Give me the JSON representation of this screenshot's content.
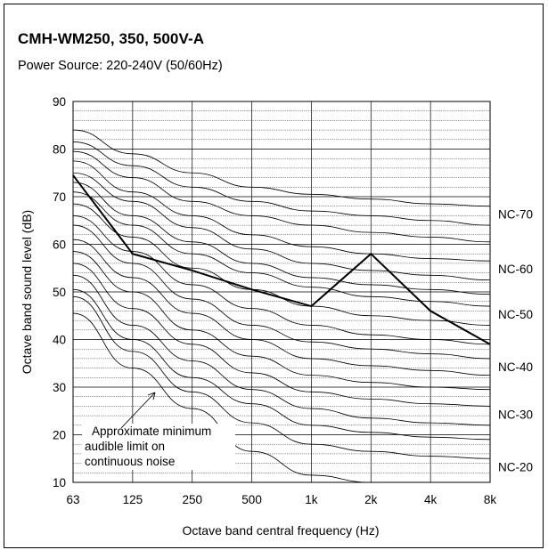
{
  "header": {
    "title": "CMH-WM250, 350, 500V-A",
    "subtitle": "Power Source: 220-240V (50/60Hz)"
  },
  "chart_data": {
    "type": "line",
    "title": "CMH-WM250, 350, 500V-A",
    "subtitle": "Power Source: 220-240V (50/60Hz)",
    "xlabel": "Octave band central frequency (Hz)",
    "ylabel": "Octave band sound level (dB)",
    "x_categories": [
      "63",
      "125",
      "250",
      "500",
      "1k",
      "2k",
      "4k",
      "8k"
    ],
    "y_ticks": [
      10,
      20,
      30,
      40,
      50,
      60,
      70,
      80,
      90
    ],
    "ylim": [
      10,
      90
    ],
    "grid": true,
    "measured": {
      "values": [
        74.5,
        58,
        54.5,
        50.5,
        47,
        58,
        46,
        39
      ],
      "color": "#000000"
    },
    "nc_curves": [
      {
        "name": "NC-70",
        "values": [
          84,
          79,
          75,
          72,
          70.5,
          69.5,
          68.5,
          68
        ]
      },
      {
        "name": "",
        "values": [
          81.5,
          76.5,
          72,
          69,
          67,
          66,
          65,
          64
        ]
      },
      {
        "name": "",
        "values": [
          79.5,
          74,
          69,
          66,
          64,
          62.5,
          61.5,
          60.5
        ]
      },
      {
        "name": "NC-60",
        "values": [
          77.5,
          71,
          66,
          62,
          59.5,
          58,
          57,
          56.5
        ]
      },
      {
        "name": "",
        "values": [
          75,
          69,
          63.5,
          59,
          56,
          54.5,
          53.5,
          52.5
        ]
      },
      {
        "name": "",
        "values": [
          73,
          66,
          60.5,
          56,
          53,
          51.5,
          50.5,
          49.5
        ]
      },
      {
        "name": "NC-50",
        "values": [
          71,
          64,
          58,
          54,
          51,
          49,
          48,
          47
        ]
      },
      {
        "name": "",
        "values": [
          68.5,
          61.5,
          55,
          50.5,
          47,
          45,
          44,
          43
        ]
      },
      {
        "name": "",
        "values": [
          66,
          58.5,
          51.5,
          46.5,
          43,
          41,
          40,
          39
        ]
      },
      {
        "name": "NC-40",
        "values": [
          64,
          56,
          48.5,
          43,
          39.5,
          38,
          37,
          36
        ]
      },
      {
        "name": "",
        "values": [
          61,
          53,
          45.5,
          40,
          36,
          34.5,
          33.5,
          32.5
        ]
      },
      {
        "name": "",
        "values": [
          58.5,
          50,
          42,
          36.5,
          32.5,
          31,
          30,
          29.5
        ]
      },
      {
        "name": "NC-30",
        "values": [
          56,
          46.5,
          39,
          33,
          29,
          27.5,
          26.5,
          26
        ]
      },
      {
        "name": "",
        "values": [
          53.5,
          43,
          35.5,
          29.5,
          25.5,
          23.5,
          22.5,
          22
        ]
      },
      {
        "name": "",
        "values": [
          50.5,
          40,
          32,
          26.5,
          22,
          20.5,
          19.5,
          19
        ]
      },
      {
        "name": "NC-20",
        "values": [
          49,
          37.5,
          29,
          22.5,
          18,
          16.5,
          15.5,
          15
        ]
      },
      {
        "name": "",
        "values": [
          45.5,
          34,
          25.5,
          16.5,
          11.5,
          10,
          10,
          10
        ]
      }
    ],
    "annotation": {
      "lines": [
        "Approximate minimum",
        "audible limit on",
        "continuous noise"
      ]
    }
  }
}
